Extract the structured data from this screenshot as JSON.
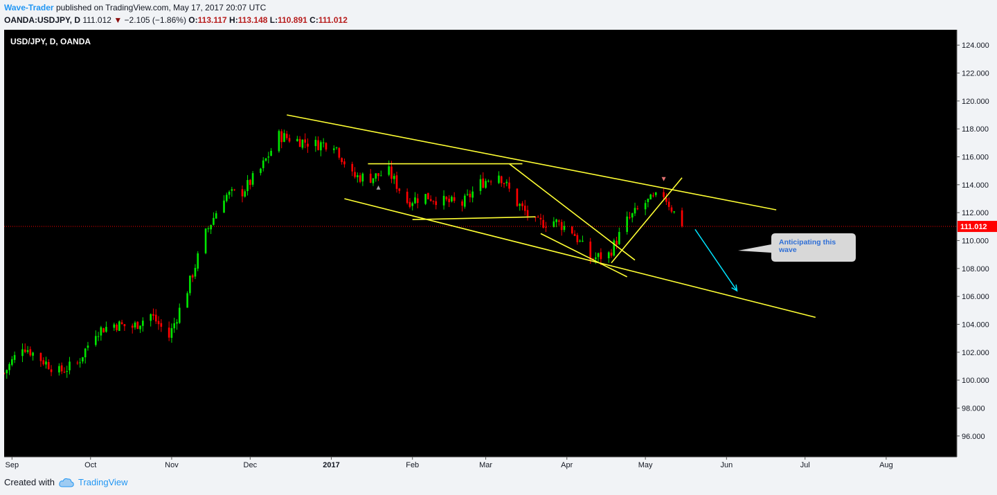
{
  "header": {
    "author": "Wave-Trader",
    "published": "published on TradingView.com, May 17, 2017 20:07 UTC",
    "symbol": "OANDA:USDJPY, D",
    "last": "111.012",
    "arrow": "▼",
    "change": "−2.105 (−1.86%)",
    "o_label": "O:",
    "o_val": "113.117",
    "h_label": "H:",
    "h_val": "113.148",
    "l_label": "L:",
    "l_val": "110.891",
    "c_label": "C:",
    "c_val": "111.012"
  },
  "footer": {
    "created_with": "Created with",
    "brand": "TradingView",
    "icon": "tradingview-cloud-icon"
  },
  "colors": {
    "background": "#000000",
    "up": "#00e600",
    "down": "#ff0000",
    "trendline": "#ffff33",
    "arrow": "#00e5ff",
    "price_label": "#ff0000",
    "callout": "#d8d8d8",
    "callout_text": "#2f6fd6"
  },
  "chart_data": {
    "type": "candlestick",
    "title": "USD/JPY, D, OANDA",
    "xlabel": "",
    "ylabel": "",
    "x_domain": [
      "2016-08-29",
      "2017-08-28"
    ],
    "ylim": [
      94.5,
      125.1
    ],
    "y_ticks": [
      "124.000",
      "122.000",
      "120.000",
      "118.000",
      "116.000",
      "114.000",
      "112.000",
      "110.000",
      "108.000",
      "106.000",
      "104.000",
      "102.000",
      "100.000",
      "98.000",
      "96.000"
    ],
    "x_ticks": [
      {
        "date": "2016-09-01",
        "label": "Sep"
      },
      {
        "date": "2016-10-01",
        "label": "Oct"
      },
      {
        "date": "2016-11-01",
        "label": "Nov"
      },
      {
        "date": "2016-12-01",
        "label": "Dec"
      },
      {
        "date": "2017-01-01",
        "label": "2017"
      },
      {
        "date": "2017-02-01",
        "label": "Feb"
      },
      {
        "date": "2017-03-01",
        "label": "Mar"
      },
      {
        "date": "2017-04-01",
        "label": "Apr"
      },
      {
        "date": "2017-05-01",
        "label": "May"
      },
      {
        "date": "2017-06-01",
        "label": "Jun"
      },
      {
        "date": "2017-07-01",
        "label": "Jul"
      },
      {
        "date": "2017-08-01",
        "label": "Aug"
      }
    ],
    "last_price": "111.012",
    "close_path": [
      [
        "2016-08-29",
        100.5
      ],
      [
        "2016-09-05",
        102.5
      ],
      [
        "2016-09-12",
        101.5
      ],
      [
        "2016-09-19",
        100.6
      ],
      [
        "2016-09-26",
        101.2
      ],
      [
        "2016-10-03",
        103.5
      ],
      [
        "2016-10-10",
        104.0
      ],
      [
        "2016-10-17",
        103.8
      ],
      [
        "2016-10-24",
        104.7
      ],
      [
        "2016-10-31",
        103.1
      ],
      [
        "2016-11-07",
        106.5
      ],
      [
        "2016-11-14",
        110.5
      ],
      [
        "2016-11-21",
        113.2
      ],
      [
        "2016-11-28",
        113.5
      ],
      [
        "2016-12-05",
        115.1
      ],
      [
        "2016-12-12",
        117.5
      ],
      [
        "2016-12-19",
        117.2
      ],
      [
        "2016-12-26",
        116.9
      ],
      [
        "2017-01-02",
        117.0
      ],
      [
        "2017-01-09",
        114.6
      ],
      [
        "2017-01-16",
        114.5
      ],
      [
        "2017-01-23",
        114.9
      ],
      [
        "2017-01-30",
        112.8
      ],
      [
        "2017-02-06",
        113.2
      ],
      [
        "2017-02-13",
        112.8
      ],
      [
        "2017-02-20",
        112.6
      ],
      [
        "2017-02-27",
        114.1
      ],
      [
        "2017-03-06",
        114.8
      ],
      [
        "2017-03-13",
        112.7
      ],
      [
        "2017-03-20",
        111.2
      ],
      [
        "2017-03-27",
        111.4
      ],
      [
        "2017-04-03",
        110.7
      ],
      [
        "2017-04-10",
        108.7
      ],
      [
        "2017-04-17",
        109.0
      ],
      [
        "2017-04-24",
        111.4
      ],
      [
        "2017-05-01",
        112.7
      ],
      [
        "2017-05-08",
        113.3
      ],
      [
        "2017-05-15",
        111.0
      ]
    ],
    "annotations": {
      "text": "Anticipating this wave",
      "markers": [
        {
          "date": "2017-01-19",
          "type": "up-triangle"
        },
        {
          "date": "2017-05-08",
          "type": "down-triangle"
        }
      ],
      "trendlines": [
        {
          "name": "upper-channel",
          "from": [
            "2016-12-15",
            119.0
          ],
          "to": [
            "2017-06-20",
            112.2
          ]
        },
        {
          "name": "lower-channel",
          "from": [
            "2017-01-06",
            113.0
          ],
          "to": [
            "2017-07-05",
            104.5
          ]
        },
        {
          "name": "range-top",
          "from": [
            "2017-01-15",
            115.5
          ],
          "to": [
            "2017-03-15",
            115.5
          ]
        },
        {
          "name": "range-bottom",
          "from": [
            "2017-02-01",
            111.5
          ],
          "to": [
            "2017-03-20",
            111.7
          ]
        },
        {
          "name": "wedge-upper",
          "from": [
            "2017-03-10",
            115.5
          ],
          "to": [
            "2017-04-27",
            108.6
          ]
        },
        {
          "name": "wedge-lower",
          "from": [
            "2017-03-22",
            110.5
          ],
          "to": [
            "2017-04-24",
            107.4
          ]
        },
        {
          "name": "breakout",
          "from": [
            "2017-04-18",
            108.4
          ],
          "to": [
            "2017-05-15",
            114.5
          ]
        }
      ],
      "forecast_arrow": {
        "from": [
          "2017-05-20",
          110.8
        ],
        "to": [
          "2017-06-05",
          106.4
        ]
      }
    }
  }
}
